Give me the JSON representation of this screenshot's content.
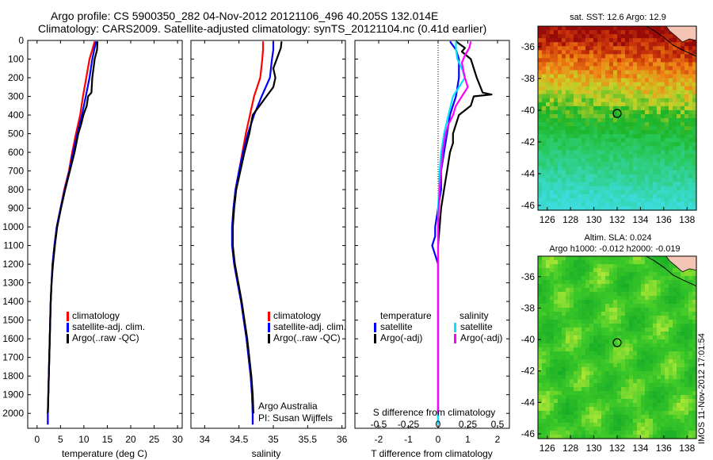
{
  "page": {
    "title_line1": "Argo profile: CS 5900350_282 04-Nov-2012 20121106_496 40.205S 132.014E",
    "title_line2": "Climatology: CARS2009. Satellite-adjusted climatology: synTS_20121104.nc (0.41d earlier)",
    "stamp": "IMOS 11-Nov-2012 17:01:54"
  },
  "colors": {
    "climatology": "#ff0000",
    "satellite": "#0000ff",
    "argo": "#000000",
    "sal_satellite": "#00e5ff",
    "sal_argo": "#ff00ff"
  },
  "chart_data": [
    {
      "type": "line",
      "id": "temperature",
      "xlabel": "temperature (deg C)",
      "ylabel": "",
      "xlim": [
        -2,
        31
      ],
      "ylim": [
        2080,
        0
      ],
      "xticks": [
        0,
        5,
        10,
        15,
        20,
        25,
        30
      ],
      "yticks": [
        0,
        100,
        200,
        300,
        400,
        500,
        600,
        700,
        800,
        900,
        1000,
        1100,
        1200,
        1300,
        1400,
        1500,
        1600,
        1700,
        1800,
        1900,
        2000
      ],
      "legend": [
        "climatology",
        "satellite-adj. clim.",
        "Argo(..raw -QC)"
      ],
      "series": [
        {
          "name": "climatology",
          "color": "#ff0000",
          "points": [
            [
              12.3,
              5
            ],
            [
              11.8,
              50
            ],
            [
              11.2,
              100
            ],
            [
              10.5,
              200
            ],
            [
              9.8,
              300
            ],
            [
              9.2,
              400
            ],
            [
              8.3,
              500
            ],
            [
              7.5,
              600
            ],
            [
              6.8,
              700
            ],
            [
              5.8,
              800
            ],
            [
              5.0,
              900
            ],
            [
              4.2,
              1000
            ],
            [
              3.7,
              1100
            ],
            [
              3.3,
              1200
            ],
            [
              3.1,
              1300
            ],
            [
              2.9,
              1400
            ],
            [
              2.8,
              1500
            ],
            [
              2.7,
              1600
            ],
            [
              2.6,
              1700
            ],
            [
              2.5,
              1800
            ],
            [
              2.4,
              1900
            ],
            [
              2.3,
              2000
            ],
            [
              2.3,
              2060
            ]
          ]
        },
        {
          "name": "satellite-adj. clim.",
          "color": "#0000ff",
          "points": [
            [
              12.6,
              5
            ],
            [
              12.2,
              50
            ],
            [
              11.8,
              100
            ],
            [
              11.2,
              200
            ],
            [
              10.4,
              300
            ],
            [
              9.6,
              400
            ],
            [
              8.6,
              500
            ],
            [
              7.7,
              600
            ],
            [
              6.9,
              700
            ],
            [
              5.9,
              800
            ],
            [
              5.0,
              900
            ],
            [
              4.2,
              1000
            ],
            [
              3.7,
              1100
            ],
            [
              3.3,
              1200
            ],
            [
              3.1,
              1300
            ],
            [
              2.9,
              1400
            ],
            [
              2.8,
              1500
            ],
            [
              2.7,
              1600
            ],
            [
              2.6,
              1700
            ],
            [
              2.5,
              1800
            ],
            [
              2.4,
              1900
            ],
            [
              2.3,
              2000
            ],
            [
              2.3,
              2060
            ]
          ]
        },
        {
          "name": "Argo(..raw -QC)",
          "color": "#000000",
          "points": [
            [
              12.9,
              5
            ],
            [
              12.8,
              50
            ],
            [
              12.3,
              100
            ],
            [
              11.8,
              200
            ],
            [
              11.6,
              280
            ],
            [
              10.9,
              300
            ],
            [
              10.6,
              350
            ],
            [
              9.9,
              400
            ],
            [
              9.4,
              450
            ],
            [
              8.8,
              500
            ],
            [
              8.0,
              600
            ],
            [
              7.0,
              700
            ],
            [
              6.0,
              800
            ],
            [
              5.1,
              900
            ],
            [
              4.3,
              1000
            ],
            [
              3.8,
              1100
            ],
            [
              3.4,
              1200
            ],
            [
              3.1,
              1300
            ],
            [
              2.9,
              1400
            ],
            [
              2.8,
              1500
            ],
            [
              2.7,
              1600
            ],
            [
              2.6,
              1700
            ],
            [
              2.5,
              1800
            ],
            [
              2.4,
              1900
            ],
            [
              2.3,
              2000
            ]
          ]
        }
      ]
    },
    {
      "type": "line",
      "id": "salinity",
      "xlabel": "salinity",
      "ylabel": "",
      "xlim": [
        33.8,
        36.05
      ],
      "ylim": [
        2080,
        0
      ],
      "xticks": [
        34,
        34.5,
        35,
        35.5,
        36
      ],
      "legend": [
        "climatology",
        "satellite-adj. clim.",
        "Argo(..raw -QC)"
      ],
      "annotation": [
        "Argo Australia",
        "PI: Susan Wijffels"
      ],
      "series": [
        {
          "name": "climatology",
          "color": "#ff0000",
          "points": [
            [
              34.85,
              5
            ],
            [
              34.85,
              50
            ],
            [
              34.84,
              100
            ],
            [
              34.81,
              200
            ],
            [
              34.72,
              300
            ],
            [
              34.66,
              400
            ],
            [
              34.6,
              500
            ],
            [
              34.55,
              600
            ],
            [
              34.5,
              700
            ],
            [
              34.45,
              800
            ],
            [
              34.42,
              900
            ],
            [
              34.4,
              1000
            ],
            [
              34.4,
              1100
            ],
            [
              34.43,
              1200
            ],
            [
              34.48,
              1300
            ],
            [
              34.53,
              1400
            ],
            [
              34.57,
              1500
            ],
            [
              34.61,
              1600
            ],
            [
              34.64,
              1700
            ],
            [
              34.67,
              1800
            ],
            [
              34.69,
              1900
            ],
            [
              34.7,
              2000
            ],
            [
              34.7,
              2060
            ]
          ]
        },
        {
          "name": "satellite-adj. clim.",
          "color": "#0000ff",
          "points": [
            [
              35.0,
              5
            ],
            [
              35.0,
              50
            ],
            [
              34.98,
              100
            ],
            [
              34.95,
              200
            ],
            [
              34.83,
              300
            ],
            [
              34.72,
              400
            ],
            [
              34.63,
              500
            ],
            [
              34.56,
              600
            ],
            [
              34.5,
              700
            ],
            [
              34.45,
              800
            ],
            [
              34.42,
              900
            ],
            [
              34.4,
              1000
            ],
            [
              34.4,
              1100
            ],
            [
              34.43,
              1200
            ],
            [
              34.48,
              1300
            ],
            [
              34.53,
              1400
            ],
            [
              34.57,
              1500
            ],
            [
              34.61,
              1600
            ],
            [
              34.64,
              1700
            ],
            [
              34.67,
              1800
            ],
            [
              34.69,
              1900
            ],
            [
              34.7,
              2000
            ],
            [
              34.7,
              2060
            ]
          ]
        },
        {
          "name": "Argo(..raw -QC)",
          "color": "#000000",
          "points": [
            [
              35.12,
              5
            ],
            [
              35.11,
              40
            ],
            [
              35.05,
              100
            ],
            [
              35.0,
              150
            ],
            [
              35.03,
              200
            ],
            [
              35.0,
              250
            ],
            [
              34.9,
              300
            ],
            [
              34.8,
              350
            ],
            [
              34.7,
              400
            ],
            [
              34.65,
              500
            ],
            [
              34.58,
              600
            ],
            [
              34.52,
              700
            ],
            [
              34.46,
              800
            ],
            [
              34.43,
              900
            ],
            [
              34.41,
              1000
            ],
            [
              34.41,
              1100
            ],
            [
              34.44,
              1200
            ],
            [
              34.49,
              1300
            ],
            [
              34.54,
              1400
            ],
            [
              34.58,
              1500
            ],
            [
              34.62,
              1600
            ],
            [
              34.65,
              1700
            ],
            [
              34.68,
              1800
            ],
            [
              34.7,
              1900
            ],
            [
              34.71,
              2000
            ]
          ]
        }
      ]
    },
    {
      "type": "line",
      "id": "difference",
      "xlabel": "T difference from climatology",
      "xlabel_top": "S difference from climatology",
      "ylabel": "",
      "xlim": [
        -2.8,
        2.4
      ],
      "ylim": [
        2080,
        0
      ],
      "xticks": [
        -2,
        -1,
        0,
        1,
        2
      ],
      "top_ticks": [
        {
          "label": "-0.5",
          "t": -2
        },
        {
          "label": "-0.25",
          "t": -1
        },
        {
          "label": "0",
          "t": 0
        },
        {
          "label": "0.25",
          "t": 1
        },
        {
          "label": "0.5",
          "t": 2
        }
      ],
      "legend_titles": [
        "temperature",
        "salinity"
      ],
      "legend": [
        "satellite",
        "Argo(-adj)",
        "satellite",
        "Argo(-adj)"
      ],
      "series": [
        {
          "name": "satellite",
          "color": "#0000ff",
          "points": [
            [
              0.4,
              5
            ],
            [
              0.6,
              50
            ],
            [
              0.7,
              100
            ],
            [
              0.7,
              200
            ],
            [
              0.6,
              300
            ],
            [
              0.4,
              400
            ],
            [
              0.3,
              500
            ],
            [
              0.2,
              600
            ],
            [
              0.1,
              700
            ],
            [
              0.1,
              800
            ],
            [
              0.0,
              900
            ],
            [
              -0.1,
              1000
            ],
            [
              -0.1,
              1050
            ],
            [
              -0.2,
              1100
            ],
            [
              -0.1,
              1150
            ],
            [
              0.0,
              1200
            ],
            [
              0.0,
              1400
            ],
            [
              0.0,
              1600
            ],
            [
              0.0,
              1800
            ],
            [
              0.0,
              2000
            ],
            [
              0.0,
              2060
            ]
          ]
        },
        {
          "name": "Argo(-adj)",
          "color": "#000000",
          "points": [
            [
              0.6,
              5
            ],
            [
              0.9,
              40
            ],
            [
              0.8,
              60
            ],
            [
              1.1,
              100
            ],
            [
              1.3,
              200
            ],
            [
              1.5,
              280
            ],
            [
              1.8,
              290
            ],
            [
              1.2,
              300
            ],
            [
              1.1,
              350
            ],
            [
              0.7,
              400
            ],
            [
              0.5,
              500
            ],
            [
              0.5,
              550
            ],
            [
              0.4,
              600
            ],
            [
              0.3,
              700
            ],
            [
              0.2,
              800
            ],
            [
              0.1,
              900
            ],
            [
              0.05,
              1000
            ],
            [
              0.0,
              1100
            ],
            [
              0.0,
              1400
            ],
            [
              0.0,
              1700
            ],
            [
              0.0,
              2000
            ]
          ]
        },
        {
          "name": "satellite",
          "color": "#00e5ff",
          "points": [
            [
              0.6,
              5
            ],
            [
              0.6,
              50
            ],
            [
              0.65,
              100
            ],
            [
              0.8,
              150
            ],
            [
              0.9,
              200
            ],
            [
              0.7,
              250
            ],
            [
              0.5,
              300
            ],
            [
              0.35,
              400
            ],
            [
              0.2,
              500
            ],
            [
              0.1,
              600
            ],
            [
              0.05,
              700
            ],
            [
              0.03,
              800
            ],
            [
              0.0,
              900
            ],
            [
              0.0,
              1100
            ],
            [
              0.0,
              1400
            ],
            [
              0.0,
              1700
            ],
            [
              0.0,
              2000
            ],
            [
              0.0,
              2060
            ]
          ]
        },
        {
          "name": "Argo(-adj)",
          "color": "#ff00ff",
          "points": [
            [
              1.1,
              5
            ],
            [
              1.05,
              40
            ],
            [
              0.9,
              80
            ],
            [
              0.8,
              120
            ],
            [
              0.9,
              200
            ],
            [
              1.0,
              250
            ],
            [
              0.8,
              300
            ],
            [
              0.6,
              350
            ],
            [
              0.5,
              400
            ],
            [
              0.35,
              450
            ],
            [
              0.25,
              500
            ],
            [
              0.15,
              600
            ],
            [
              0.1,
              700
            ],
            [
              0.05,
              800
            ],
            [
              0.02,
              900
            ],
            [
              0.0,
              1000
            ],
            [
              0.0,
              1200
            ],
            [
              0.0,
              1400
            ],
            [
              0.0,
              1700
            ],
            [
              0.0,
              2000
            ]
          ]
        }
      ]
    },
    {
      "type": "heatmap",
      "id": "sst_map",
      "title": "sat. SST: 12.6  Argo: 12.9",
      "xticks": [
        126,
        128,
        130,
        132,
        134,
        136,
        138
      ],
      "yticks": [
        -36,
        -38,
        -40,
        -42,
        -44,
        -46
      ],
      "xlim": [
        125.2,
        138.8
      ],
      "ylim": [
        -46.3,
        -34.7
      ],
      "marker": {
        "lon": 132.0,
        "lat": -40.2
      }
    },
    {
      "type": "heatmap",
      "id": "sla_map",
      "title_line1": "Altim. SLA: 0.024",
      "title_line2": "Argo h1000: -0.012 h2000: -0.019",
      "xticks": [
        126,
        128,
        130,
        132,
        134,
        136,
        138
      ],
      "yticks": [
        -36,
        -38,
        -40,
        -42,
        -44,
        -46
      ],
      "xlim": [
        125.2,
        138.8
      ],
      "ylim": [
        -46.3,
        -34.7
      ],
      "marker": {
        "lon": 132.0,
        "lat": -40.2
      }
    }
  ]
}
